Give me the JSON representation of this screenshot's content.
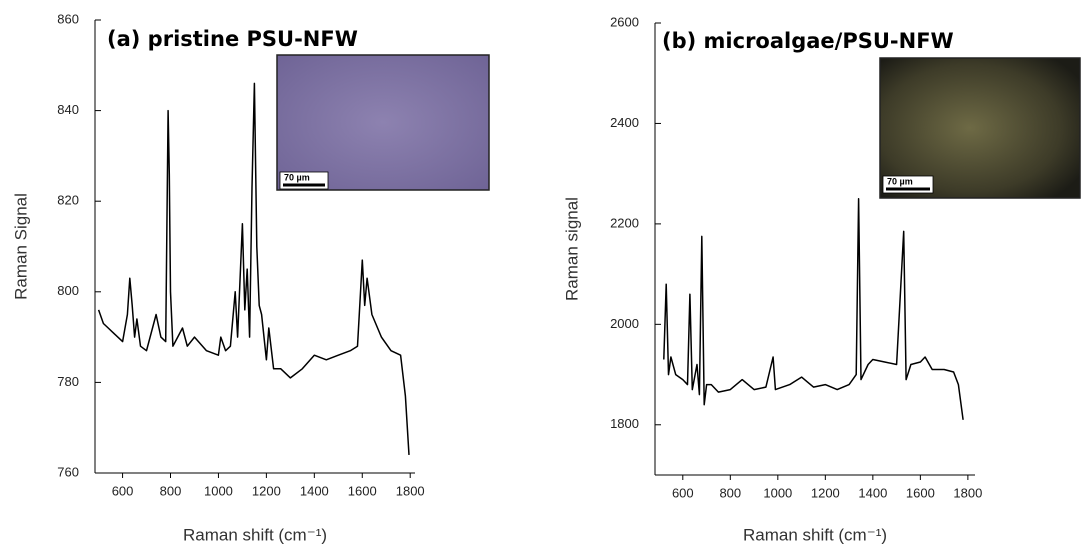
{
  "chart_data": [
    {
      "type": "line",
      "title": "(a) pristine PSU-NFW",
      "xlabel": "Raman shift (cm⁻¹)",
      "ylabel": "Raman Signal",
      "inset_label": "70 µm",
      "xlim": [
        485,
        1820
      ],
      "ylim": [
        760,
        860
      ],
      "xticks": [
        600,
        800,
        1000,
        1200,
        1400,
        1600,
        1800
      ],
      "yticks": [
        760,
        780,
        800,
        820,
        840,
        860
      ],
      "series": [
        {
          "color": "#000000",
          "x": [
            500,
            520,
            540,
            560,
            580,
            600,
            620,
            630,
            640,
            650,
            660,
            675,
            700,
            740,
            760,
            780,
            790,
            795,
            800,
            810,
            830,
            850,
            870,
            900,
            950,
            1000,
            1010,
            1030,
            1050,
            1070,
            1080,
            1100,
            1110,
            1120,
            1130,
            1140,
            1150,
            1160,
            1170,
            1180,
            1200,
            1210,
            1230,
            1260,
            1300,
            1350,
            1400,
            1450,
            1500,
            1550,
            1580,
            1600,
            1610,
            1620,
            1640,
            1680,
            1720,
            1760,
            1780,
            1795
          ],
          "values": [
            796,
            793,
            792,
            791,
            790,
            789,
            795,
            803,
            797,
            790,
            794,
            788,
            787,
            795,
            790,
            789,
            840,
            826,
            800,
            788,
            790,
            792,
            788,
            790,
            787,
            786,
            790,
            787,
            788,
            800,
            790,
            815,
            796,
            805,
            790,
            823,
            846,
            810,
            797,
            795,
            785,
            792,
            783,
            783,
            781,
            783,
            786,
            785,
            786,
            787,
            788,
            807,
            797,
            803,
            795,
            790,
            787,
            786,
            777,
            764
          ]
        }
      ]
    },
    {
      "type": "line",
      "title": "(b) microalgae/PSU-NFW",
      "xlabel": "Raman shift (cm⁻¹)",
      "ylabel": "Raman signal",
      "inset_label": "70 µm",
      "xlim": [
        483,
        1830
      ],
      "ylim": [
        1700,
        2600
      ],
      "xticks": [
        600,
        800,
        1000,
        1200,
        1400,
        1600,
        1800
      ],
      "yticks": [
        1800,
        2000,
        2200,
        2400,
        2600
      ],
      "series": [
        {
          "color": "#000000",
          "x": [
            520,
            530,
            540,
            550,
            570,
            600,
            620,
            630,
            640,
            660,
            670,
            680,
            690,
            700,
            720,
            750,
            800,
            850,
            900,
            950,
            980,
            990,
            1050,
            1100,
            1150,
            1200,
            1250,
            1300,
            1330,
            1340,
            1350,
            1380,
            1400,
            1450,
            1500,
            1530,
            1540,
            1560,
            1600,
            1620,
            1650,
            1700,
            1740,
            1760,
            1780
          ],
          "values": [
            1930,
            2080,
            1900,
            1935,
            1900,
            1890,
            1880,
            2060,
            1870,
            1920,
            1860,
            2175,
            1840,
            1880,
            1880,
            1865,
            1870,
            1890,
            1870,
            1875,
            1935,
            1870,
            1880,
            1895,
            1875,
            1880,
            1870,
            1880,
            1900,
            2250,
            1890,
            1920,
            1930,
            1925,
            1920,
            2185,
            1890,
            1920,
            1925,
            1935,
            1910,
            1910,
            1905,
            1880,
            1810
          ]
        }
      ]
    }
  ]
}
